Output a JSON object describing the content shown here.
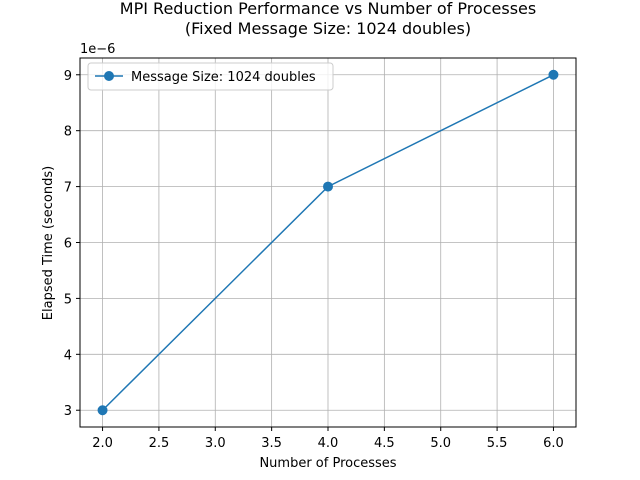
{
  "chart_data": {
    "type": "line",
    "title": [
      "MPI Reduction Performance vs Number of Processes",
      "(Fixed Message Size: 1024 doubles)"
    ],
    "xlabel": "Number of Processes",
    "ylabel": "Elapsed Time (seconds)",
    "y_offset_label": "1e−6",
    "xlim": [
      1.8,
      6.2
    ],
    "ylim": [
      2.7,
      9.3
    ],
    "y_scale_factor": "1e-6",
    "x_ticks": [
      2.0,
      2.5,
      3.0,
      3.5,
      4.0,
      4.5,
      5.0,
      5.5,
      6.0
    ],
    "x_tick_labels": [
      "2.0",
      "2.5",
      "3.0",
      "3.5",
      "4.0",
      "4.5",
      "5.0",
      "5.5",
      "6.0"
    ],
    "y_ticks": [
      3,
      4,
      5,
      6,
      7,
      8,
      9
    ],
    "y_tick_labels": [
      "3",
      "4",
      "5",
      "6",
      "7",
      "8",
      "9"
    ],
    "grid": true,
    "legend_position": "upper-left",
    "series": [
      {
        "name": "Message Size: 1024 doubles",
        "color": "#1f77b4",
        "marker": "circle",
        "x": [
          2,
          4,
          6
        ],
        "y": [
          3,
          7,
          9
        ]
      }
    ]
  }
}
